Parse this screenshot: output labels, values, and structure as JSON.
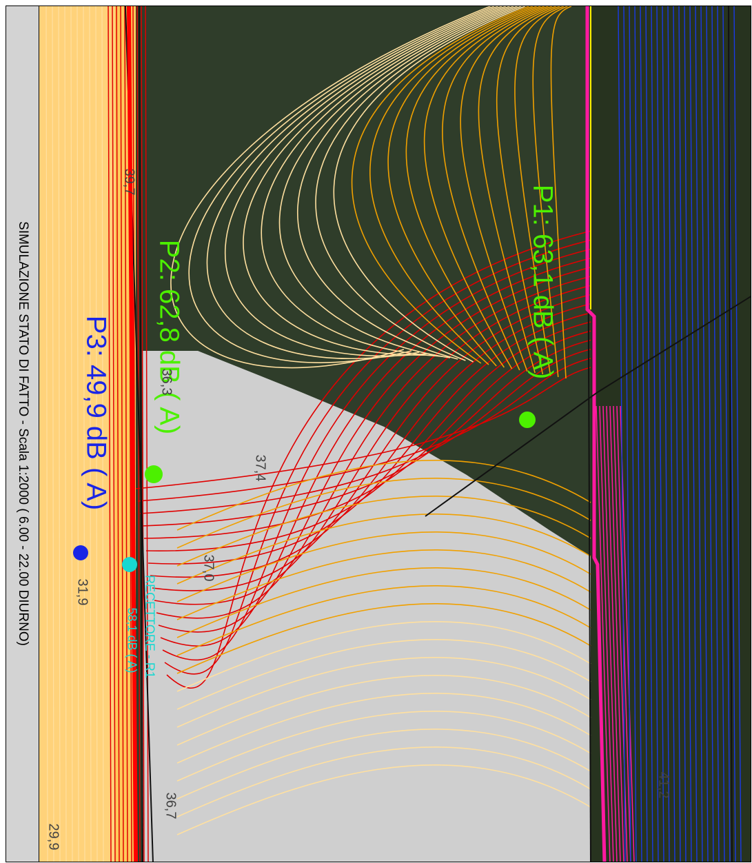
{
  "map": {
    "title": "SIMULAZIONE STATO DI FATTO - Scala 1:2000  ( 6.00 - 22.00 DIURNO)",
    "points": [
      {
        "id": "P1",
        "label": "P1: 63,1 dB  ( A)",
        "color": "#4cf000"
      },
      {
        "id": "P2",
        "label": "P2: 62,8 dB  ( A)",
        "color": "#4cf000"
      },
      {
        "id": "P3",
        "label": "P3: 49,9 dB  ( A)",
        "color": "#1a25e6"
      }
    ],
    "receptor": {
      "label": "RECETTORE - R1",
      "value": "58,1 dB  ( A)",
      "color": "#16d8d0"
    },
    "contour_labels": [
      "39,7",
      "36,3",
      "37,4",
      "37,0",
      "31,9",
      "36,7",
      "41,2",
      "29,9"
    ],
    "colors": {
      "road": "#ffd060",
      "red_isolines": "#e00000",
      "orange_isolines": "#f0a000",
      "pale_isolines": "#ffe0a0",
      "magenta": "#ff1aa0",
      "blue_isolines": "#1a3ae6",
      "grey_zone": "#cfcfcf",
      "aerial": "#2f3d2a"
    }
  }
}
